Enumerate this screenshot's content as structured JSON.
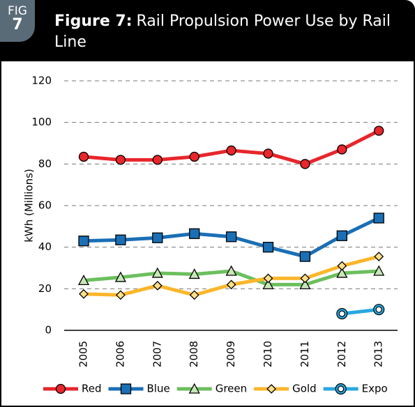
{
  "header": {
    "badge_top": "FIG",
    "badge_number": "7",
    "title_bold": "Figure 7:",
    "title": "Rail Propulsion Power Use by Rail Line"
  },
  "chart_data": {
    "type": "line",
    "y_label": "kWh (Millions)",
    "categories": [
      "2005",
      "2006",
      "2007",
      "2008",
      "2009",
      "2010",
      "2011",
      "2012",
      "2013"
    ],
    "series": [
      {
        "name": "Red",
        "color": "#e8262b",
        "values": [
          83.5,
          82,
          82,
          83.5,
          86.5,
          85,
          80,
          87,
          96
        ]
      },
      {
        "name": "Blue",
        "color": "#1a6fb5",
        "values": [
          43,
          43.5,
          44.5,
          46.5,
          45,
          40,
          35.5,
          45.5,
          54
        ]
      },
      {
        "name": "Green",
        "color": "#6cbf5e",
        "values": [
          24,
          25.5,
          27.5,
          27,
          28.5,
          22,
          22,
          27.5,
          28.5
        ]
      },
      {
        "name": "Gold",
        "color": "#fbb62a",
        "values": [
          17.5,
          17,
          21.5,
          17,
          22,
          25,
          25,
          31,
          35.5
        ]
      },
      {
        "name": "Expo",
        "color": "#29a8e0",
        "values": [
          null,
          null,
          null,
          null,
          null,
          null,
          null,
          8,
          10
        ]
      }
    ],
    "ylim": [
      0,
      120
    ],
    "yticks": [
      0,
      20,
      40,
      60,
      80,
      100,
      120
    ],
    "grid": true,
    "legend": "bottom"
  }
}
